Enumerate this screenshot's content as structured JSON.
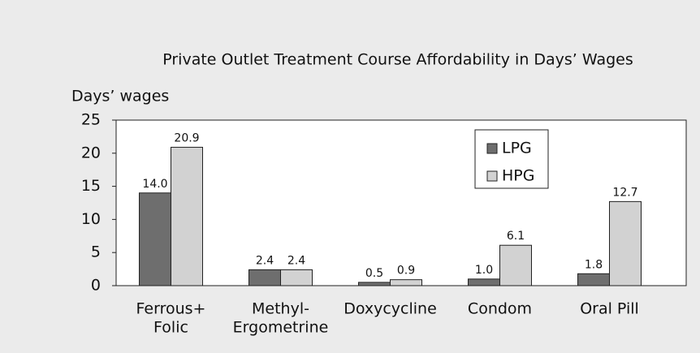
{
  "chart_data": {
    "type": "bar",
    "title": "Private Outlet Treatment Course Affordability in Days’ Wages",
    "y_label": "Days’ wages",
    "categories": [
      [
        "Ferrous+",
        "Folic"
      ],
      [
        "Methyl-",
        "Ergometrine"
      ],
      [
        "Doxycycline"
      ],
      [
        "Condom"
      ],
      [
        "Oral Pill"
      ]
    ],
    "series": [
      {
        "name": "LPG",
        "color": "#6e6e6e",
        "values": [
          14.0,
          2.4,
          0.5,
          1.0,
          1.8
        ],
        "value_labels": [
          "14.0",
          "2.4",
          "0.5",
          "1.0",
          "1.8"
        ]
      },
      {
        "name": "HPG",
        "color": "#d2d2d2",
        "values": [
          20.9,
          2.4,
          0.9,
          6.1,
          12.7
        ],
        "value_labels": [
          "20.9",
          "2.4",
          "0.9",
          "6.1",
          "12.7"
        ]
      }
    ],
    "ylim": [
      0,
      25
    ],
    "yticks": [
      0,
      5,
      10,
      15,
      20,
      25
    ],
    "grid": false,
    "legend": "upper right"
  }
}
